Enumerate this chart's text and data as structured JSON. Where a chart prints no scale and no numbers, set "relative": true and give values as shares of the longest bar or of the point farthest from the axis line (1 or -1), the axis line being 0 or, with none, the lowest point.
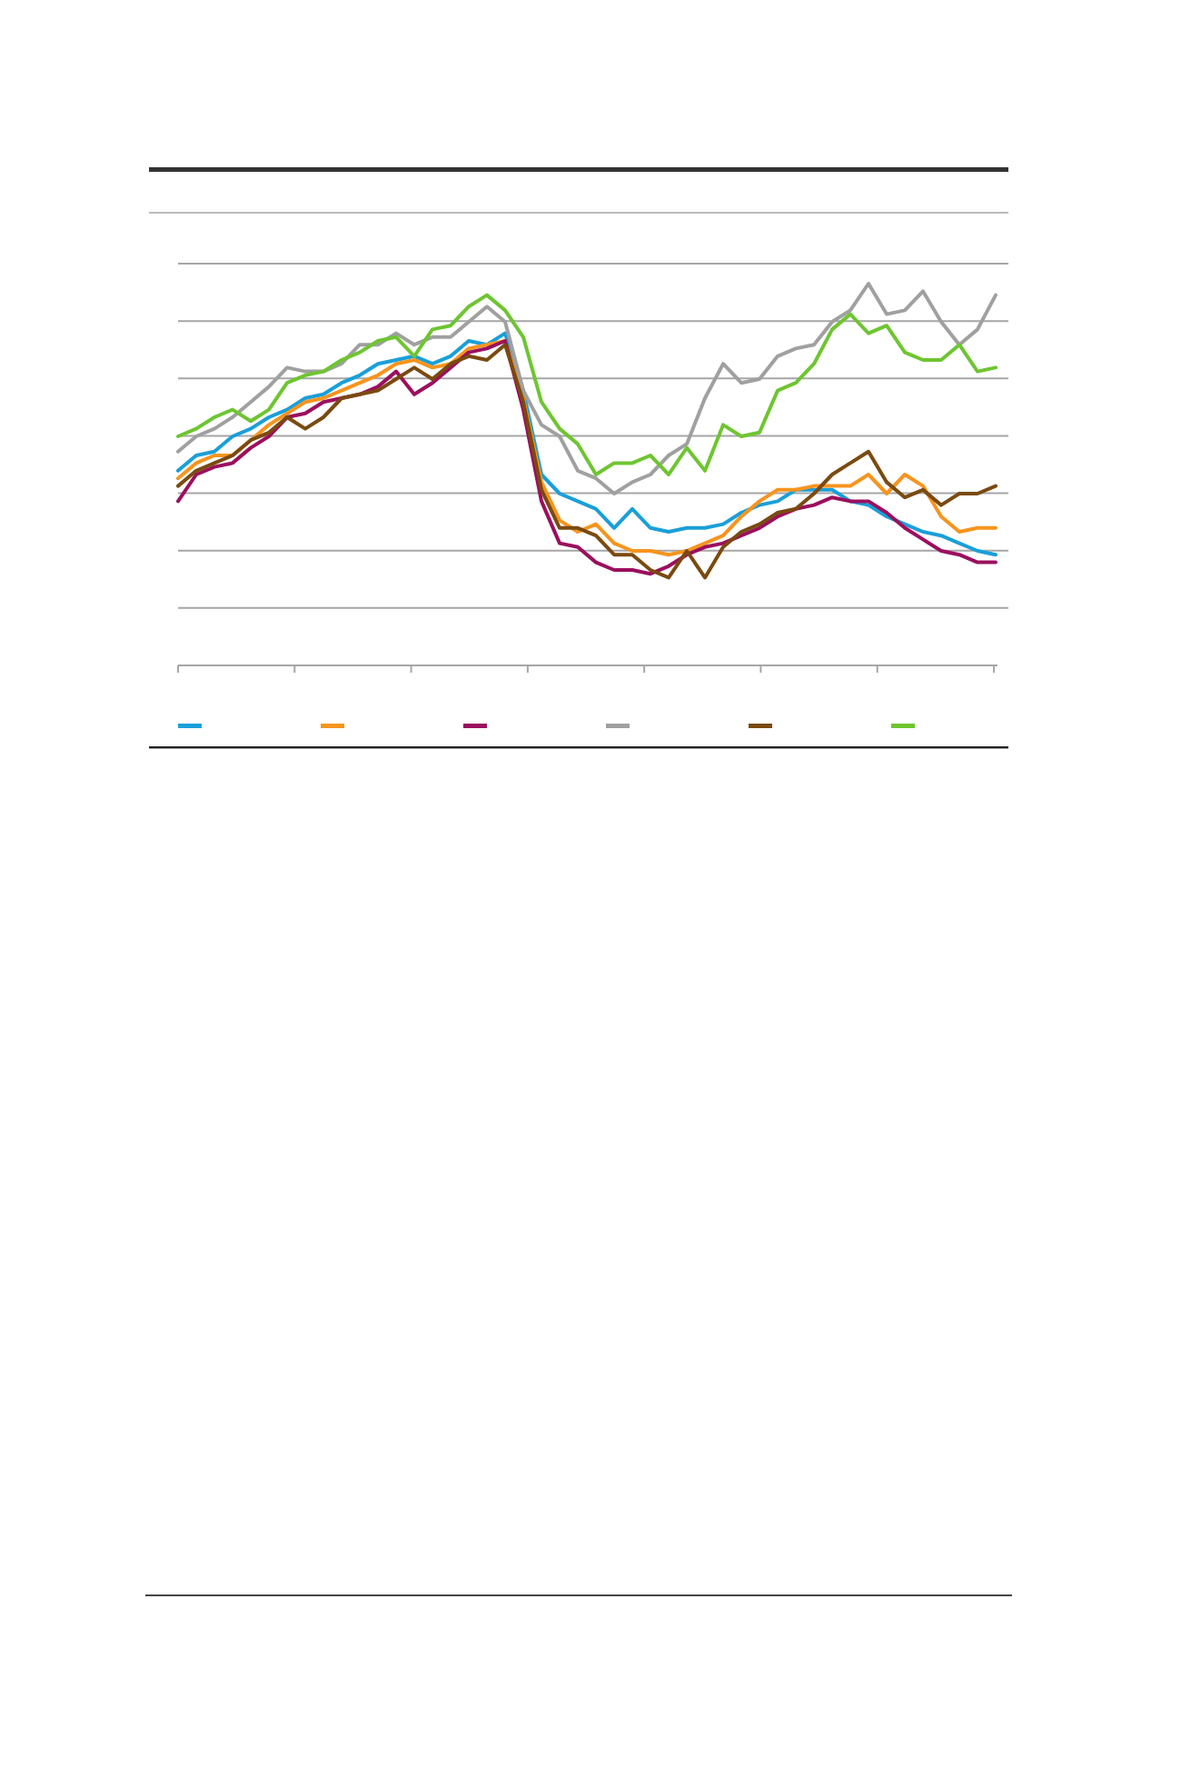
{
  "chart_data": {
    "type": "line",
    "relative": true,
    "grid": "y",
    "marker": "none",
    "line_style": "solid",
    "categories": [
      null,
      null,
      null,
      null,
      null,
      null,
      null,
      null,
      null,
      null,
      null,
      null,
      null,
      null,
      null,
      null,
      null,
      null,
      null,
      null,
      null,
      null,
      null,
      null,
      null,
      null,
      null,
      null,
      null,
      null,
      null,
      null,
      null,
      null,
      null,
      null,
      null,
      null,
      null,
      null,
      null,
      null,
      null,
      null,
      null,
      null
    ],
    "series": [
      {
        "color": "#1a9fd9",
        "values": [
          0.51,
          0.55,
          0.56,
          0.6,
          0.62,
          0.65,
          0.67,
          0.7,
          0.71,
          0.74,
          0.76,
          0.79,
          0.8,
          0.81,
          0.79,
          0.81,
          0.85,
          0.84,
          0.87,
          0.72,
          0.5,
          0.45,
          0.43,
          0.41,
          0.36,
          0.41,
          0.36,
          0.35,
          0.36,
          0.36,
          0.37,
          0.4,
          0.42,
          0.43,
          0.46,
          0.46,
          0.46,
          0.43,
          0.42,
          0.39,
          0.37,
          0.35,
          0.34,
          0.32,
          0.3,
          0.29
        ]
      },
      {
        "color": "#f7941d",
        "values": [
          0.49,
          0.53,
          0.55,
          0.55,
          0.59,
          0.63,
          0.66,
          0.69,
          0.7,
          0.72,
          0.74,
          0.76,
          0.79,
          0.8,
          0.78,
          0.79,
          0.83,
          0.84,
          0.85,
          0.7,
          0.48,
          0.38,
          0.35,
          0.37,
          0.32,
          0.3,
          0.3,
          0.29,
          0.3,
          0.32,
          0.34,
          0.39,
          0.43,
          0.46,
          0.46,
          0.47,
          0.47,
          0.47,
          0.5,
          0.45,
          0.5,
          0.47,
          0.39,
          0.35,
          0.36,
          0.36
        ]
      },
      {
        "color": "#9b0f5e",
        "values": [
          0.43,
          0.5,
          0.52,
          0.53,
          0.57,
          0.6,
          0.65,
          0.66,
          0.69,
          0.7,
          0.71,
          0.73,
          0.77,
          0.71,
          0.74,
          0.78,
          0.82,
          0.83,
          0.85,
          0.67,
          0.43,
          0.32,
          0.31,
          0.27,
          0.25,
          0.25,
          0.24,
          0.26,
          0.29,
          0.31,
          0.32,
          0.34,
          0.36,
          0.39,
          0.41,
          0.42,
          0.44,
          0.43,
          0.43,
          0.4,
          0.36,
          0.33,
          0.3,
          0.29,
          0.27,
          0.27
        ]
      },
      {
        "color": "#a0a0a0",
        "values": [
          0.56,
          0.6,
          0.62,
          0.65,
          0.69,
          0.73,
          0.78,
          0.77,
          0.77,
          0.79,
          0.84,
          0.84,
          0.87,
          0.84,
          0.86,
          0.86,
          0.9,
          0.94,
          0.9,
          0.72,
          0.63,
          0.6,
          0.51,
          0.49,
          0.45,
          0.48,
          0.5,
          0.55,
          0.58,
          0.7,
          0.79,
          0.74,
          0.75,
          0.81,
          0.83,
          0.84,
          0.9,
          0.93,
          1,
          0.92,
          0.93,
          0.98,
          0.9,
          0.84,
          0.88,
          0.97
        ]
      },
      {
        "color": "#7a4a10",
        "values": [
          0.47,
          0.51,
          0.53,
          0.55,
          0.59,
          0.61,
          0.65,
          0.62,
          0.65,
          0.7,
          0.71,
          0.72,
          0.75,
          0.78,
          0.75,
          0.79,
          0.81,
          0.8,
          0.84,
          0.69,
          0.46,
          0.36,
          0.36,
          0.34,
          0.29,
          0.29,
          0.25,
          0.23,
          0.3,
          0.23,
          0.31,
          0.35,
          0.37,
          0.4,
          0.41,
          0.45,
          0.5,
          0.53,
          0.56,
          0.48,
          0.44,
          0.46,
          0.42,
          0.45,
          0.45,
          0.47
        ]
      },
      {
        "color": "#6ec531",
        "values": [
          0.6,
          0.62,
          0.65,
          0.67,
          0.64,
          0.67,
          0.74,
          0.76,
          0.77,
          0.8,
          0.82,
          0.85,
          0.86,
          0.81,
          0.88,
          0.89,
          0.94,
          0.97,
          0.93,
          0.86,
          0.69,
          0.62,
          0.58,
          0.5,
          0.53,
          0.53,
          0.55,
          0.5,
          0.57,
          0.51,
          0.63,
          0.6,
          0.61,
          0.72,
          0.74,
          0.79,
          0.88,
          0.92,
          0.87,
          0.89,
          0.82,
          0.8,
          0.8,
          0.84,
          0.77,
          0.78
        ]
      }
    ]
  }
}
